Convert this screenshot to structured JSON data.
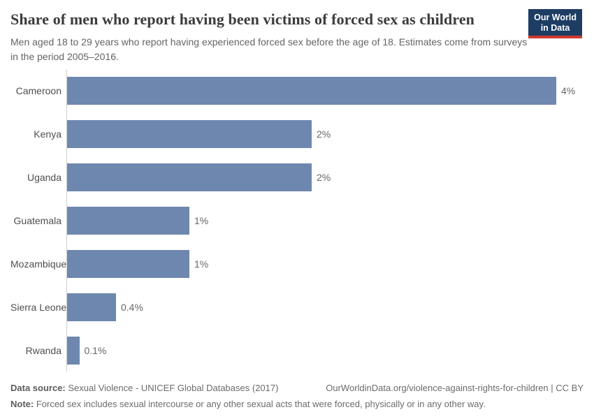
{
  "header": {
    "title": "Share of men who report having been victims of forced sex as children",
    "subtitle": "Men aged 18 to 29 years who report having experienced forced sex before the age of 18. Estimates come from surveys in the period 2005–2016.",
    "logo_line1": "Our World",
    "logo_line2": "in Data"
  },
  "chart_data": {
    "type": "bar",
    "orientation": "horizontal",
    "title": "Share of men who report having been victims of forced sex as children",
    "categories": [
      "Cameroon",
      "Kenya",
      "Uganda",
      "Guatemala",
      "Mozambique",
      "Sierra Leone",
      "Rwanda"
    ],
    "values": [
      4,
      2,
      2,
      1,
      1,
      0.4,
      0.1
    ],
    "value_labels": [
      "4%",
      "2%",
      "2%",
      "1%",
      "1%",
      "0.4%",
      "0.1%"
    ],
    "unit": "%",
    "xlim": [
      0,
      4
    ],
    "grid": false,
    "legend": "none",
    "bar_color": "#6e87af",
    "axis_line_color": "#cfcfcf"
  },
  "footer": {
    "datasource_label": "Data source:",
    "datasource_value": " Sexual Violence - UNICEF Global Databases (2017)",
    "attribution": "OurWorldinData.org/violence-against-rights-for-children | CC BY",
    "note_label": "Note:",
    "note_value": " Forced sex includes sexual intercourse or any other sexual acts that were forced, physically or in any other way."
  },
  "colors": {
    "bar": "#6e87af",
    "logo_background": "#1d3d63",
    "logo_underline": "#cf3a2e",
    "title_text": "#3c3c3c",
    "muted_text": "#646464"
  }
}
